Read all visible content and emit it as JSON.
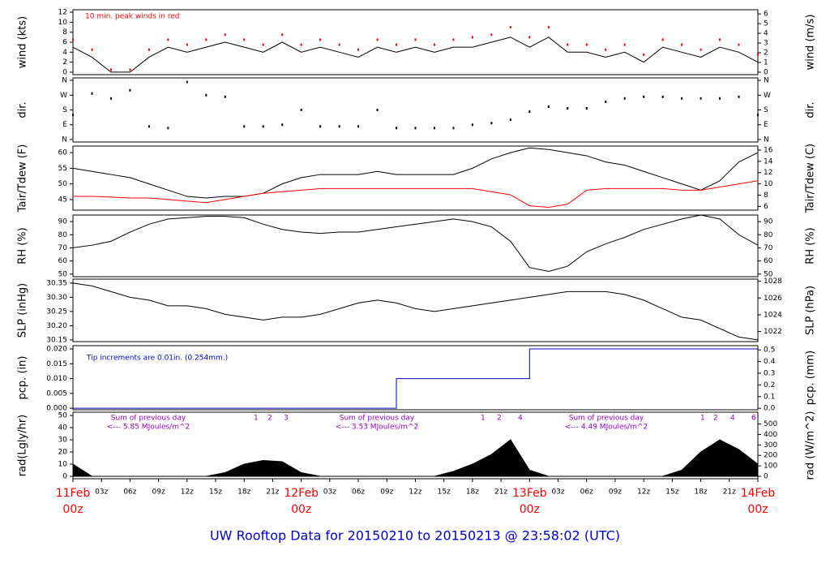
{
  "title": "UW Rooftop Data for 20150210  to  20150213 @ 23:58:02  (UTC)",
  "chart_data": [
    {
      "type": "line",
      "ylabel": "wind (kts)",
      "y2label": "wind (m/s)",
      "annotations": [
        "10 min. peak winds in red"
      ],
      "x": [
        0,
        2,
        4,
        6,
        8,
        10,
        12,
        14,
        16,
        18,
        20,
        22,
        24,
        26,
        28,
        30,
        32,
        34,
        36,
        38,
        40,
        42,
        44,
        46,
        48,
        50,
        52,
        54,
        56,
        58,
        60,
        62,
        64,
        66,
        68,
        70,
        72
      ],
      "xlim": [
        0,
        72
      ],
      "ylim": [
        -0.5,
        12.5
      ],
      "yticks": [
        0,
        2,
        4,
        6,
        8,
        10,
        12
      ],
      "y2lim": [
        -0.257,
        6.43
      ],
      "y2ticks": [
        0,
        1,
        2,
        3,
        4,
        5,
        6
      ],
      "series": [
        {
          "color": "#000000",
          "mark": "line",
          "values": [
            5,
            3,
            0,
            0,
            3,
            5,
            4,
            5,
            6,
            5,
            4,
            6,
            4,
            5,
            4,
            3,
            5,
            4,
            5,
            4,
            5,
            5,
            6,
            7,
            5,
            7,
            4,
            4,
            3,
            4,
            2,
            5,
            4,
            3,
            5,
            4,
            2
          ]
        },
        {
          "color": "#ff0000",
          "mark": "dots",
          "values": [
            6.5,
            4.5,
            0.5,
            0.5,
            4.5,
            6.5,
            5.5,
            6.5,
            7.5,
            6.5,
            5.5,
            7.5,
            5.5,
            6.5,
            5.5,
            4.5,
            6.5,
            5.5,
            6.5,
            5.5,
            6.5,
            7,
            7.5,
            9,
            7,
            9,
            5.5,
            5.5,
            4.5,
            5.5,
            3.5,
            6.5,
            5.5,
            4.5,
            6.5,
            5.5,
            3.5
          ]
        }
      ]
    },
    {
      "type": "scatter",
      "ylabel": "dir.",
      "y2label": "dir.",
      "x": [
        0,
        2,
        4,
        6,
        8,
        10,
        12,
        14,
        16,
        18,
        20,
        22,
        24,
        26,
        28,
        30,
        32,
        34,
        36,
        38,
        40,
        42,
        44,
        46,
        48,
        50,
        52,
        54,
        56,
        58,
        60,
        62,
        64,
        66,
        68,
        70,
        72
      ],
      "xlim": [
        0,
        72
      ],
      "ylim": [
        -15,
        375
      ],
      "yticks": [
        {
          "value": 0,
          "label": "N"
        },
        {
          "value": 90,
          "label": "E"
        },
        {
          "value": 180,
          "label": "S"
        },
        {
          "value": 270,
          "label": "W"
        },
        {
          "value": 360,
          "label": "N"
        }
      ],
      "y2lim": [
        -15,
        375
      ],
      "y2ticks": [
        {
          "value": 0,
          "label": "N"
        },
        {
          "value": 90,
          "label": "E"
        },
        {
          "value": 180,
          "label": "S"
        },
        {
          "value": 270,
          "label": "W"
        },
        {
          "value": 360,
          "label": "N"
        }
      ],
      "series": [
        {
          "color": "#000000",
          "mark": "dots",
          "values": [
            150,
            280,
            250,
            300,
            80,
            70,
            350,
            270,
            260,
            80,
            80,
            90,
            180,
            80,
            80,
            80,
            180,
            70,
            70,
            70,
            70,
            90,
            100,
            120,
            170,
            200,
            190,
            190,
            230,
            250,
            260,
            260,
            250,
            250,
            250,
            260,
            150
          ]
        }
      ]
    },
    {
      "type": "line",
      "ylabel": "Tair/Tdew (F)",
      "y2label": "Tair/Tdew (C)",
      "x": [
        0,
        2,
        4,
        6,
        8,
        10,
        12,
        14,
        16,
        18,
        20,
        22,
        24,
        26,
        28,
        30,
        32,
        34,
        36,
        38,
        40,
        42,
        44,
        46,
        48,
        50,
        52,
        54,
        56,
        58,
        60,
        62,
        64,
        66,
        68,
        70,
        72
      ],
      "xlim": [
        0,
        72
      ],
      "ylim": [
        41.6,
        62.1
      ],
      "yticks": [
        45,
        50,
        55,
        60
      ],
      "y2lim": [
        5.33,
        16.72
      ],
      "y2ticks": [
        6,
        8,
        10,
        12,
        14,
        16
      ],
      "series": [
        {
          "color": "#000000",
          "mark": "line",
          "values": [
            55,
            54,
            53,
            52,
            50,
            48,
            46,
            45.5,
            46,
            46,
            47,
            50,
            52,
            53,
            53,
            53,
            54,
            53,
            53,
            53,
            53,
            55,
            58,
            60,
            61.5,
            61,
            60,
            59,
            57,
            56,
            54,
            52,
            50,
            48,
            51,
            57,
            60
          ]
        },
        {
          "color": "#ff0000",
          "mark": "line",
          "values": [
            46,
            46,
            45.8,
            45.5,
            45.5,
            45,
            44.5,
            44,
            45,
            46,
            47,
            47.5,
            48,
            48.5,
            48.5,
            48.5,
            48.5,
            48.5,
            48.5,
            48.5,
            48.5,
            48.5,
            47.5,
            46.5,
            43,
            42.5,
            43.5,
            48,
            48.5,
            48.5,
            48.5,
            48.5,
            48,
            48,
            49,
            50,
            51
          ]
        }
      ]
    },
    {
      "type": "line",
      "ylabel": "RH (%)",
      "y2label": "RH (%)",
      "x": [
        0,
        2,
        4,
        6,
        8,
        10,
        12,
        14,
        16,
        18,
        20,
        22,
        24,
        26,
        28,
        30,
        32,
        34,
        36,
        38,
        40,
        42,
        44,
        46,
        48,
        50,
        52,
        54,
        56,
        58,
        60,
        62,
        64,
        66,
        68,
        70,
        72
      ],
      "xlim": [
        0,
        72
      ],
      "ylim": [
        48,
        95
      ],
      "yticks": [
        50,
        60,
        70,
        80,
        90
      ],
      "y2lim": [
        48,
        95
      ],
      "y2ticks": [
        50,
        60,
        70,
        80,
        90
      ],
      "series": [
        {
          "color": "#000000",
          "mark": "line",
          "values": [
            70,
            72,
            75,
            82,
            88,
            92,
            93,
            94,
            94,
            93,
            88,
            84,
            82,
            81,
            82,
            82,
            84,
            86,
            88,
            90,
            92,
            90,
            86,
            75,
            55,
            52,
            56,
            67,
            73,
            78,
            84,
            88,
            92,
            95,
            92,
            80,
            72
          ]
        }
      ]
    },
    {
      "type": "line",
      "ylabel": "SLP (inHg)",
      "y2label": "SLP (hPa)",
      "x": [
        0,
        2,
        4,
        6,
        8,
        10,
        12,
        14,
        16,
        18,
        20,
        22,
        24,
        26,
        28,
        30,
        32,
        34,
        36,
        38,
        40,
        42,
        44,
        46,
        48,
        50,
        52,
        54,
        56,
        58,
        60,
        62,
        64,
        66,
        68,
        70,
        72
      ],
      "xlim": [
        0,
        72
      ],
      "ylim": [
        30.144,
        30.364
      ],
      "yticks": [
        30.15,
        {
          "value": 30.2,
          "label": "30.20"
        },
        30.25,
        {
          "value": 30.3,
          "label": "30.30"
        },
        30.35
      ],
      "y2lim": [
        1020.8,
        1028.25
      ],
      "y2ticks": [
        1022,
        1024,
        1026,
        1028
      ],
      "series": [
        {
          "color": "#000000",
          "mark": "line",
          "values": [
            30.35,
            30.34,
            30.32,
            30.3,
            30.29,
            30.27,
            30.27,
            30.26,
            30.24,
            30.23,
            30.22,
            30.23,
            30.23,
            30.24,
            30.26,
            30.28,
            30.29,
            30.28,
            30.26,
            30.25,
            30.26,
            30.27,
            30.28,
            30.29,
            30.3,
            30.31,
            30.32,
            30.32,
            30.32,
            30.31,
            30.29,
            30.26,
            30.23,
            30.22,
            30.19,
            30.16,
            30.15
          ]
        }
      ]
    },
    {
      "type": "line",
      "ylabel": "pcp. (in)",
      "y2label": "pcp. (mm)",
      "annotations": [
        "Tip increments are 0.01in. (0.254mm.)"
      ],
      "x": [
        0,
        34,
        48,
        72
      ],
      "xlim": [
        0,
        72
      ],
      "ylim": [
        -0.0005,
        0.0211
      ],
      "yticks": [
        {
          "value": 0,
          "label": "0.000"
        },
        0.005,
        {
          "value": 0.01,
          "label": "0.010"
        },
        0.015,
        {
          "value": 0.02,
          "label": "0.020"
        }
      ],
      "y2lim": [
        -0.0127,
        0.536
      ],
      "y2ticks": [
        {
          "value": 0,
          "label": "0.0"
        },
        0.1,
        0.2,
        0.3,
        0.4,
        0.5
      ],
      "series": [
        {
          "color": "#0000cc",
          "mark": "step",
          "values": [
            0,
            0.01,
            0.02,
            0.02
          ]
        }
      ]
    },
    {
      "type": "line",
      "ylabel": "rad(Lgly/hr)",
      "y2label": "rad (W/m^2)",
      "annotations": [
        "Sum of previous day",
        "<--- 5.85 MJoules/m^2",
        "Sum of previous day",
        "<--- 3.53 MJoules/m^2",
        "Sum of previous day",
        "<--- 4.49 MJoules/m^2",
        "1",
        "2",
        "3",
        "1",
        "2",
        "4",
        "1",
        "2",
        "4",
        "6"
      ],
      "x": [
        0,
        2,
        4,
        6,
        8,
        10,
        12,
        14,
        16,
        18,
        20,
        22,
        24,
        26,
        28,
        30,
        32,
        34,
        36,
        38,
        40,
        42,
        44,
        46,
        48,
        50,
        52,
        54,
        56,
        58,
        60,
        62,
        64,
        66,
        68,
        70,
        72
      ],
      "xlim": [
        0,
        72
      ],
      "ylim": [
        -2,
        52.7
      ],
      "yticks": [
        0,
        10,
        20,
        30,
        40,
        50
      ],
      "y2lim": [
        -23,
        613
      ],
      "y2ticks": [
        0,
        100,
        200,
        300,
        400,
        500
      ],
      "xticks": [
        {
          "value": 0,
          "label": "00z"
        },
        {
          "value": 3,
          "label": "03z"
        },
        {
          "value": 6,
          "label": "06z"
        },
        {
          "value": 9,
          "label": "09z"
        },
        {
          "value": 12,
          "label": "12z"
        },
        {
          "value": 15,
          "label": "15z"
        },
        {
          "value": 18,
          "label": "18z"
        },
        {
          "value": 21,
          "label": "21z"
        },
        {
          "value": 24,
          "label": "00z"
        },
        {
          "value": 27,
          "label": "03z"
        },
        {
          "value": 30,
          "label": "06z"
        },
        {
          "value": 33,
          "label": "09z"
        },
        {
          "value": 36,
          "label": "12z"
        },
        {
          "value": 39,
          "label": "15z"
        },
        {
          "value": 42,
          "label": "18z"
        },
        {
          "value": 45,
          "label": "21z"
        },
        {
          "value": 48,
          "label": "00z"
        },
        {
          "value": 51,
          "label": "03z"
        },
        {
          "value": 54,
          "label": "06z"
        },
        {
          "value": 57,
          "label": "09z"
        },
        {
          "value": 60,
          "label": "12z"
        },
        {
          "value": 63,
          "label": "15z"
        },
        {
          "value": 66,
          "label": "18z"
        },
        {
          "value": 69,
          "label": "21z"
        },
        {
          "value": 72,
          "label": "00z"
        }
      ],
      "xdates": [
        {
          "value": 0,
          "label": "11Feb"
        },
        {
          "value": 24,
          "label": "12Feb"
        },
        {
          "value": 48,
          "label": "13Feb"
        },
        {
          "value": 72,
          "label": "14Feb"
        }
      ],
      "series": [
        {
          "color": "#000000",
          "mark": "area",
          "values": [
            10,
            0,
            0,
            0,
            0,
            0,
            0,
            0,
            3,
            10,
            13,
            12,
            3,
            0,
            0,
            0,
            0,
            0,
            0,
            0,
            4,
            10,
            18,
            30,
            5,
            0,
            0,
            0,
            0,
            0,
            0,
            0,
            5,
            20,
            30,
            22,
            10
          ]
        }
      ]
    }
  ]
}
